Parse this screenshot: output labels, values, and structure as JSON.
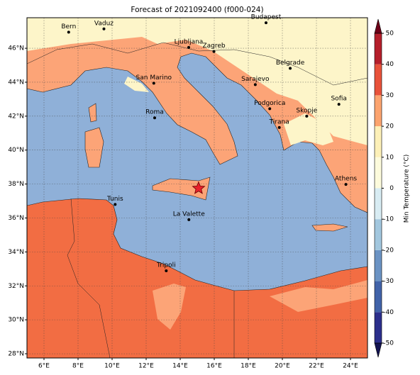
{
  "title": "Forecast of 2021092400 (f000-024)",
  "map": {
    "xlim": [
      5,
      25
    ],
    "ylim": [
      27.75,
      47.8
    ],
    "grid": true,
    "xticks": [
      {
        "value": 6,
        "label": "6°E"
      },
      {
        "value": 8,
        "label": "8°E"
      },
      {
        "value": 10,
        "label": "10°E"
      },
      {
        "value": 12,
        "label": "12°E"
      },
      {
        "value": 14,
        "label": "14°E"
      },
      {
        "value": 16,
        "label": "16°E"
      },
      {
        "value": 18,
        "label": "18°E"
      },
      {
        "value": 20,
        "label": "20°E"
      },
      {
        "value": 22,
        "label": "22°E"
      },
      {
        "value": 24,
        "label": "24°E"
      }
    ],
    "yticks": [
      {
        "value": 28,
        "label": "28°N"
      },
      {
        "value": 30,
        "label": "30°N"
      },
      {
        "value": 32,
        "label": "32°N"
      },
      {
        "value": 34,
        "label": "34°N"
      },
      {
        "value": 36,
        "label": "36°N"
      },
      {
        "value": 38,
        "label": "38°N"
      },
      {
        "value": 40,
        "label": "40°N"
      },
      {
        "value": 42,
        "label": "42°N"
      },
      {
        "value": 44,
        "label": "44°N"
      },
      {
        "value": 46,
        "label": "46°N"
      }
    ],
    "cities": [
      {
        "name": "Bern",
        "lon": 7.45,
        "lat": 46.95
      },
      {
        "name": "Vaduz",
        "lon": 9.52,
        "lat": 47.14
      },
      {
        "name": "Budapest",
        "lon": 19.04,
        "lat": 47.5
      },
      {
        "name": "Ljubljana",
        "lon": 14.5,
        "lat": 46.05
      },
      {
        "name": "Zagreb",
        "lon": 15.98,
        "lat": 45.81
      },
      {
        "name": "San Marino",
        "lon": 12.45,
        "lat": 43.94
      },
      {
        "name": "Sarajevo",
        "lon": 18.41,
        "lat": 43.86
      },
      {
        "name": "Belgrade",
        "lon": 20.46,
        "lat": 44.82
      },
      {
        "name": "Roma",
        "lon": 12.5,
        "lat": 41.9
      },
      {
        "name": "Podgorica",
        "lon": 19.26,
        "lat": 42.44
      },
      {
        "name": "Skopje",
        "lon": 21.43,
        "lat": 42.0
      },
      {
        "name": "Sofia",
        "lon": 23.32,
        "lat": 42.7
      },
      {
        "name": "Tirana",
        "lon": 19.82,
        "lat": 41.33
      },
      {
        "name": "Athens",
        "lon": 23.73,
        "lat": 37.98
      },
      {
        "name": "Tunis",
        "lon": 10.18,
        "lat": 36.8
      },
      {
        "name": "La Valette",
        "lon": 14.51,
        "lat": 35.9
      },
      {
        "name": "Tripoli",
        "lon": 13.18,
        "lat": 32.89
      }
    ],
    "marker": {
      "lon": 15.08,
      "lat": 37.75,
      "color": "#e8202a"
    }
  },
  "colorbar": {
    "label": "Min Temperature (°C)",
    "lim": [
      -50,
      50
    ],
    "ticks": [
      -50,
      -40,
      -30,
      -20,
      -10,
      0,
      10,
      20,
      30,
      40,
      50
    ],
    "colors": [
      "#2c2f8c",
      "#4163a9",
      "#6b93c4",
      "#a2c7de",
      "#d8ecf3",
      "#fdfbdc",
      "#fdf0b8",
      "#fca46f",
      "#e8523a",
      "#b51f2b"
    ],
    "under": "#141452",
    "over": "#6e0018"
  }
}
